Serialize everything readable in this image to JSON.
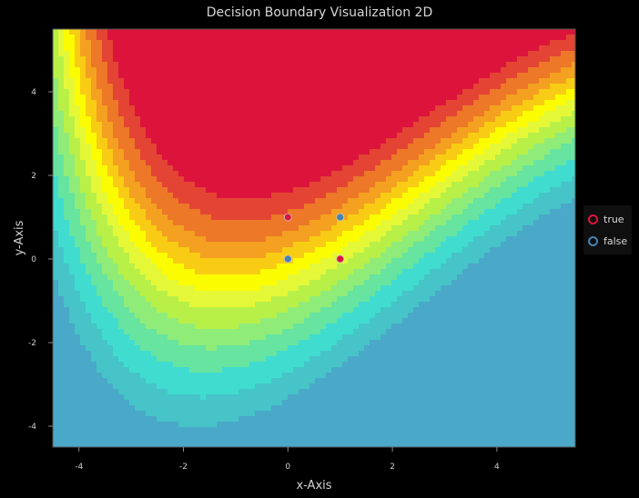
{
  "chart_data": {
    "type": "heatmap",
    "title": "Decision Boundary Visualization 2D",
    "xlabel": "x-Axis",
    "ylabel": "y-Axis",
    "xlim": [
      -4.5,
      5.5
    ],
    "ylim": [
      -4.5,
      5.5
    ],
    "x_ticks": [
      -4,
      -2,
      0,
      2,
      4
    ],
    "y_ticks": [
      4,
      2,
      0,
      -2,
      -4
    ],
    "grid": false,
    "legend_position": "right",
    "contour_colors": [
      "#4aa8c8",
      "#46c4c8",
      "#40dcd0",
      "#66e4a0",
      "#90ec78",
      "#b8f048",
      "#e4f838",
      "#fcfc00",
      "#f8cc14",
      "#f4a020",
      "#ec7828",
      "#e44434",
      "#dc143c"
    ],
    "series": [
      {
        "name": "true",
        "color": "#dc143c",
        "points": [
          [
            0,
            1
          ],
          [
            1,
            0
          ]
        ]
      },
      {
        "name": "false",
        "color": "#4682b4",
        "points": [
          [
            0,
            0
          ],
          [
            1,
            1
          ]
        ]
      }
    ]
  }
}
